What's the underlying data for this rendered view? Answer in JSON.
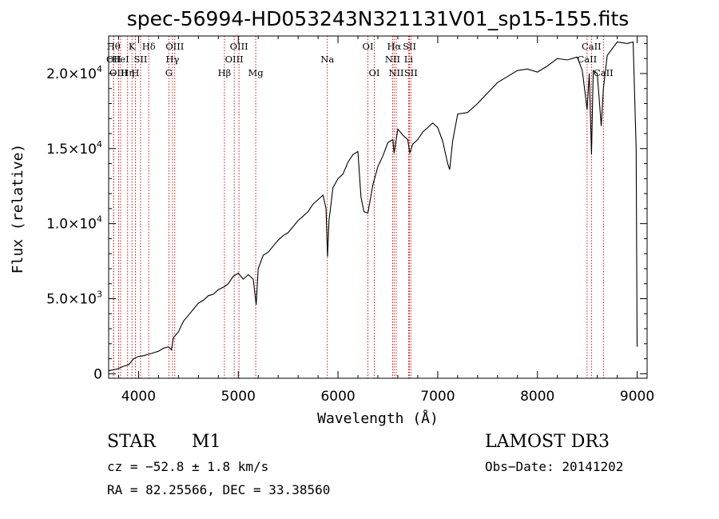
{
  "chart_data": {
    "type": "line",
    "title": "spec-56994-HD053243N321131V01_sp15-155.fits",
    "xlabel": "Wavelength (Å)",
    "ylabel": "Flux (relative)",
    "xlim": [
      3700,
      9100
    ],
    "ylim": [
      -300,
      22500
    ],
    "x_ticks": [
      {
        "value": 4000,
        "label": "4000"
      },
      {
        "value": 5000,
        "label": "5000"
      },
      {
        "value": 6000,
        "label": "6000"
      },
      {
        "value": 7000,
        "label": "7000"
      },
      {
        "value": 8000,
        "label": "8000"
      },
      {
        "value": 9000,
        "label": "9000"
      }
    ],
    "y_ticks": [
      {
        "value": 0,
        "mant": "0",
        "exp": ""
      },
      {
        "value": 5000,
        "mant": "5.0×10",
        "exp": "3"
      },
      {
        "value": 10000,
        "mant": "1.0×10",
        "exp": "4"
      },
      {
        "value": 15000,
        "mant": "1.5×10",
        "exp": "4"
      },
      {
        "value": 20000,
        "mant": "2.0×10",
        "exp": "4"
      }
    ],
    "series": [
      {
        "name": "flux",
        "points": [
          [
            3700,
            200
          ],
          [
            3780,
            300
          ],
          [
            3850,
            500
          ],
          [
            3900,
            600
          ],
          [
            3950,
            1000
          ],
          [
            4000,
            1150
          ],
          [
            4050,
            1200
          ],
          [
            4100,
            1300
          ],
          [
            4150,
            1400
          ],
          [
            4200,
            1500
          ],
          [
            4250,
            1700
          ],
          [
            4300,
            1800
          ],
          [
            4330,
            1600
          ],
          [
            4350,
            2400
          ],
          [
            4400,
            2800
          ],
          [
            4450,
            3500
          ],
          [
            4500,
            3900
          ],
          [
            4550,
            4300
          ],
          [
            4600,
            4700
          ],
          [
            4650,
            4900
          ],
          [
            4700,
            5200
          ],
          [
            4750,
            5300
          ],
          [
            4800,
            5600
          ],
          [
            4860,
            5800
          ],
          [
            4900,
            6000
          ],
          [
            4950,
            6500
          ],
          [
            5000,
            6700
          ],
          [
            5050,
            6300
          ],
          [
            5100,
            6600
          ],
          [
            5150,
            6300
          ],
          [
            5180,
            4600
          ],
          [
            5200,
            7000
          ],
          [
            5250,
            7900
          ],
          [
            5300,
            8100
          ],
          [
            5350,
            8500
          ],
          [
            5400,
            8900
          ],
          [
            5450,
            9200
          ],
          [
            5500,
            9400
          ],
          [
            5550,
            9800
          ],
          [
            5600,
            10200
          ],
          [
            5650,
            10500
          ],
          [
            5700,
            10800
          ],
          [
            5750,
            11300
          ],
          [
            5800,
            11600
          ],
          [
            5850,
            11900
          ],
          [
            5880,
            11000
          ],
          [
            5895,
            7800
          ],
          [
            5910,
            10200
          ],
          [
            5950,
            12400
          ],
          [
            6000,
            13000
          ],
          [
            6050,
            13300
          ],
          [
            6100,
            14100
          ],
          [
            6150,
            14600
          ],
          [
            6200,
            14800
          ],
          [
            6230,
            11800
          ],
          [
            6260,
            10800
          ],
          [
            6300,
            10700
          ],
          [
            6350,
            12600
          ],
          [
            6400,
            13800
          ],
          [
            6450,
            14500
          ],
          [
            6500,
            15400
          ],
          [
            6550,
            15600
          ],
          [
            6563,
            14700
          ],
          [
            6600,
            16300
          ],
          [
            6650,
            15900
          ],
          [
            6700,
            15600
          ],
          [
            6720,
            14700
          ],
          [
            6750,
            15300
          ],
          [
            6800,
            15600
          ],
          [
            6850,
            16100
          ],
          [
            6900,
            16400
          ],
          [
            6950,
            16700
          ],
          [
            7000,
            16400
          ],
          [
            7050,
            15500
          ],
          [
            7100,
            14000
          ],
          [
            7120,
            13600
          ],
          [
            7150,
            15500
          ],
          [
            7200,
            17300
          ],
          [
            7300,
            17400
          ],
          [
            7400,
            18000
          ],
          [
            7500,
            18700
          ],
          [
            7600,
            19400
          ],
          [
            7700,
            19800
          ],
          [
            7800,
            20200
          ],
          [
            7900,
            20300
          ],
          [
            8000,
            20100
          ],
          [
            8100,
            20500
          ],
          [
            8200,
            21000
          ],
          [
            8300,
            20900
          ],
          [
            8400,
            21100
          ],
          [
            8450,
            20200
          ],
          [
            8498,
            17600
          ],
          [
            8520,
            20000
          ],
          [
            8542,
            14600
          ],
          [
            8560,
            20200
          ],
          [
            8600,
            20000
          ],
          [
            8640,
            16500
          ],
          [
            8662,
            19000
          ],
          [
            8700,
            21200
          ],
          [
            8800,
            22100
          ],
          [
            8900,
            22000
          ],
          [
            8960,
            22100
          ],
          [
            8990,
            15000
          ],
          [
            9000,
            1800
          ]
        ]
      }
    ],
    "lines": [
      {
        "wl": 3750,
        "label": "Hθ",
        "row": 1
      },
      {
        "wl": 3750,
        "label": "OII",
        "row": 2
      },
      {
        "wl": 3820,
        "label": "HeI",
        "row": 2
      },
      {
        "wl": 3800,
        "label": "OIII",
        "row": 3
      },
      {
        "wl": 3890,
        "label": "Hη",
        "row": 3
      },
      {
        "wl": 3934,
        "label": "K",
        "row": 1
      },
      {
        "wl": 3968,
        "label": "H",
        "row": 3
      },
      {
        "wl": 4020,
        "label": "SII",
        "row": 2
      },
      {
        "wl": 4102,
        "label": "Hδ",
        "row": 1
      },
      {
        "wl": 4340,
        "label": "Hγ",
        "row": 2
      },
      {
        "wl": 4363,
        "label": "OIII",
        "row": 1
      },
      {
        "wl": 4304,
        "label": "G",
        "row": 3
      },
      {
        "wl": 4861,
        "label": "Hβ",
        "row": 3
      },
      {
        "wl": 4959,
        "label": "OIII",
        "row": 2
      },
      {
        "wl": 5007,
        "label": "OIII",
        "row": 1
      },
      {
        "wl": 5175,
        "label": "Mg",
        "row": 3
      },
      {
        "wl": 5893,
        "label": "Na",
        "row": 2
      },
      {
        "wl": 6300,
        "label": "OI",
        "row": 1
      },
      {
        "wl": 6364,
        "label": "OI",
        "row": 3
      },
      {
        "wl": 6548,
        "label": "NII",
        "row": 2
      },
      {
        "wl": 6563,
        "label": "Hα",
        "row": 1
      },
      {
        "wl": 6584,
        "label": "NII",
        "row": 3
      },
      {
        "wl": 6708,
        "label": "Li",
        "row": 2
      },
      {
        "wl": 6717,
        "label": "SII",
        "row": 1
      },
      {
        "wl": 6731,
        "label": "SII",
        "row": 3
      },
      {
        "wl": 8498,
        "label": "CaII",
        "row": 2
      },
      {
        "wl": 8542,
        "label": "CaII",
        "row": 1
      },
      {
        "wl": 8662,
        "label": "CaII",
        "row": 3
      }
    ],
    "colors": {
      "spectrum": "#000000",
      "lines": "#cc0000"
    }
  },
  "info": {
    "object_type": "STAR",
    "subclass": "M1",
    "survey": "LAMOST DR3",
    "cz": "cz = −52.8 ± 1.8 km/s",
    "obs_date": "Obs−Date: 20141202",
    "coords": "RA =  82.25566, DEC =  33.38560"
  }
}
